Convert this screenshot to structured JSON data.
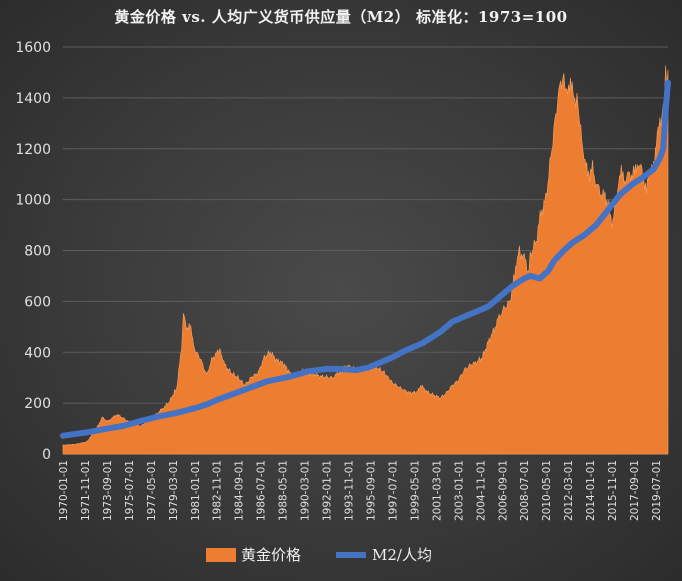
{
  "chart_data": {
    "type": "area+line",
    "title": "黄金价格 vs. 人均广义货币供应量（M2） 标准化：1973=100",
    "ylim": [
      0,
      1600
    ],
    "yticks": [
      0,
      200,
      400,
      600,
      800,
      1000,
      1200,
      1400,
      1600
    ],
    "xrange": [
      1970.0,
      2020.5
    ],
    "xtick_labels": [
      "1970-01-01",
      "1971-11-01",
      "1973-09-01",
      "1975-07-01",
      "1977-05-01",
      "1979-03-01",
      "1981-01-01",
      "1982-11-01",
      "1984-09-01",
      "1986-07-01",
      "1988-05-01",
      "1990-03-01",
      "1992-01-01",
      "1993-11-01",
      "1995-09-01",
      "1997-07-01",
      "1999-05-01",
      "2001-03-01",
      "2003-01-01",
      "2004-11-01",
      "2006-09-01",
      "2008-07-01",
      "2010-05-01",
      "2012-03-01",
      "2014-01-01",
      "2015-11-01",
      "2017-09-01",
      "2019-07-01"
    ],
    "xtick_years": [
      1970.0,
      1971.83,
      1973.67,
      1975.5,
      1977.33,
      1979.17,
      1981.0,
      1982.83,
      1984.67,
      1986.5,
      1988.33,
      1990.17,
      1992.0,
      1993.83,
      1995.67,
      1997.5,
      1999.33,
      2001.17,
      2003.0,
      2004.83,
      2006.67,
      2008.5,
      2010.33,
      2012.17,
      2014.0,
      2015.83,
      2017.67,
      2019.5
    ],
    "series": [
      {
        "name": "黄金价格",
        "type": "area",
        "color": "#ed7d31",
        "x": [
          1970.0,
          1971.0,
          1972.0,
          1972.8,
          1973.3,
          1973.7,
          1974.5,
          1974.9,
          1975.5,
          1976.5,
          1977.0,
          1978.0,
          1978.8,
          1979.5,
          1979.9,
          1980.05,
          1980.3,
          1980.6,
          1980.9,
          1981.5,
          1982.0,
          1982.4,
          1982.9,
          1983.1,
          1983.5,
          1984.0,
          1984.6,
          1985.2,
          1985.7,
          1986.3,
          1986.8,
          1987.3,
          1987.8,
          1988.4,
          1989.0,
          1989.7,
          1990.1,
          1990.6,
          1991.5,
          1992.5,
          1993.3,
          1993.6,
          1994.5,
          1995.5,
          1996.2,
          1996.8,
          1997.5,
          1998.5,
          1999.0,
          1999.6,
          1999.85,
          2000.5,
          2001.0,
          2001.5,
          2002.0,
          2002.5,
          2003.0,
          2003.5,
          2004.0,
          2004.5,
          2005.0,
          2005.5,
          2006.0,
          2006.4,
          2006.8,
          2007.3,
          2007.7,
          2008.0,
          2008.2,
          2008.5,
          2008.8,
          2009.0,
          2009.5,
          2009.9,
          2010.3,
          2010.8,
          2011.3,
          2011.7,
          2011.9,
          2012.2,
          2012.5,
          2012.8,
          2013.0,
          2013.3,
          2013.5,
          2013.8,
          2014.2,
          2014.6,
          2015.0,
          2015.4,
          2015.9,
          2016.3,
          2016.6,
          2016.9,
          2017.3,
          2017.7,
          2018.0,
          2018.4,
          2018.7,
          2019.0,
          2019.3,
          2019.6,
          2019.9,
          2020.1,
          2020.3,
          2020.5
        ],
        "values": [
          35,
          38,
          48,
          100,
          145,
          128,
          155,
          145,
          125,
          110,
          128,
          165,
          200,
          260,
          420,
          560,
          490,
          520,
          420,
          370,
          310,
          370,
          400,
          410,
          350,
          320,
          300,
          270,
          300,
          320,
          380,
          400,
          370,
          355,
          315,
          310,
          330,
          320,
          305,
          300,
          330,
          350,
          330,
          335,
          340,
          320,
          280,
          250,
          240,
          245,
          270,
          240,
          230,
          220,
          240,
          270,
          290,
          330,
          350,
          360,
          380,
          440,
          490,
          540,
          570,
          600,
          700,
          800,
          790,
          780,
          700,
          780,
          840,
          950,
          1000,
          1200,
          1400,
          1480,
          1470,
          1420,
          1440,
          1400,
          1380,
          1240,
          1150,
          1100,
          1120,
          1050,
          1020,
          1000,
          900,
          1050,
          1100,
          1080,
          1100,
          1100,
          1150,
          1100,
          1050,
          1100,
          1150,
          1250,
          1300,
          1360,
          1480,
          1510
        ]
      },
      {
        "name": "M2/人均",
        "type": "line",
        "color": "#4472c4",
        "x": [
          1970.0,
          1972.0,
          1973.7,
          1975.0,
          1976.5,
          1978.0,
          1979.5,
          1981.0,
          1982.0,
          1983.0,
          1985.0,
          1987.0,
          1989.0,
          1990.5,
          1992.0,
          1993.5,
          1994.5,
          1995.5,
          1996.5,
          1997.5,
          1998.5,
          2000.0,
          2001.5,
          2002.5,
          2003.5,
          2004.5,
          2005.5,
          2006.5,
          2007.5,
          2008.5,
          2009.0,
          2009.8,
          2010.5,
          2011.0,
          2011.8,
          2012.5,
          2013.5,
          2014.5,
          2015.5,
          2016.5,
          2017.5,
          2018.5,
          2019.3,
          2019.8,
          2020.1,
          2020.3,
          2020.5
        ],
        "values": [
          72,
          85,
          100,
          110,
          130,
          148,
          162,
          180,
          195,
          215,
          250,
          285,
          305,
          325,
          335,
          333,
          330,
          340,
          360,
          380,
          405,
          435,
          480,
          520,
          540,
          560,
          580,
          620,
          660,
          690,
          700,
          690,
          720,
          760,
          800,
          830,
          860,
          900,
          960,
          1020,
          1060,
          1090,
          1120,
          1160,
          1200,
          1350,
          1460
        ]
      }
    ]
  },
  "legend": {
    "gold_label": "黄金价格",
    "m2_label": "M2/人均"
  }
}
